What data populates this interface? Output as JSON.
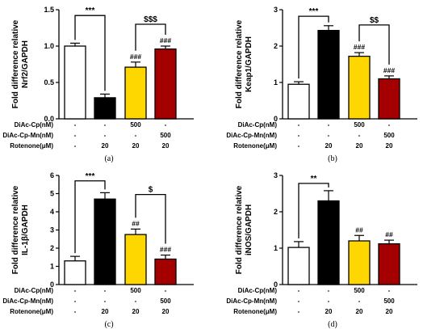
{
  "panel_layout": [
    {
      "ox": 0,
      "oy": 0
    },
    {
      "ox": 277,
      "oy": 0
    },
    {
      "ox": 0,
      "oy": 205
    },
    {
      "ox": 277,
      "oy": 205
    }
  ],
  "condition_labels": [
    "DiAc-Cp(nM)",
    "DiAc-Cp-Mn(nM)",
    "Rotenone(μM)"
  ],
  "condition_values": [
    [
      "-",
      "-",
      "500",
      "-"
    ],
    [
      "-",
      "-",
      "-",
      "500"
    ],
    [
      "-",
      "20",
      "20",
      "20"
    ]
  ],
  "bar_colors": [
    "#ffffff",
    "#000000",
    "#ffd700",
    "#a50000"
  ],
  "chart_data": [
    {
      "type": "bar",
      "panel_label": "(a)",
      "ylabel": [
        "Fold difference relative",
        "Nrf2/GAPDH"
      ],
      "ylim": [
        0,
        1.5
      ],
      "yticks": [
        "0.0",
        "0.5",
        "1.0",
        "1.5"
      ],
      "values": [
        1.0,
        0.29,
        0.71,
        0.96
      ],
      "errors": [
        0.04,
        0.05,
        0.07,
        0.04
      ],
      "bar_marks": [
        "",
        "",
        "###",
        "###"
      ],
      "brackets": [
        {
          "from": 0,
          "to": 1,
          "label": "***",
          "level": 1.42
        },
        {
          "from": 2,
          "to": 3,
          "label": "$$$",
          "level": 1.3
        }
      ],
      "grid": false
    },
    {
      "type": "bar",
      "panel_label": "(b)",
      "ylabel": [
        "Fold difference relative",
        "Keap1/GAPDH"
      ],
      "ylim": [
        0,
        3
      ],
      "yticks": [
        "0",
        "1",
        "2",
        "3"
      ],
      "values": [
        0.95,
        2.43,
        1.72,
        1.1
      ],
      "errors": [
        0.07,
        0.13,
        0.1,
        0.08
      ],
      "bar_marks": [
        "",
        "",
        "###",
        "###"
      ],
      "brackets": [
        {
          "from": 0,
          "to": 1,
          "label": "***",
          "level": 2.82
        },
        {
          "from": 2,
          "to": 3,
          "label": "$$",
          "level": 2.58
        }
      ],
      "grid": false
    },
    {
      "type": "bar",
      "panel_label": "(c)",
      "ylabel": [
        "Fold difference relative",
        "IL-1β/GAPDH"
      ],
      "ylim": [
        0,
        6
      ],
      "yticks": [
        "0",
        "1",
        "2",
        "3",
        "4",
        "5",
        "6"
      ],
      "values": [
        1.3,
        4.7,
        2.75,
        1.4
      ],
      "errors": [
        0.25,
        0.35,
        0.3,
        0.22
      ],
      "bar_marks": [
        "",
        "",
        "##",
        "###"
      ],
      "brackets": [
        {
          "from": 0,
          "to": 1,
          "label": "***",
          "level": 5.7
        },
        {
          "from": 2,
          "to": 3,
          "label": "$",
          "level": 4.95
        }
      ],
      "grid": false
    },
    {
      "type": "bar",
      "panel_label": "(d)",
      "ylabel": [
        "Fold difference relative",
        "iNOS/GAPDH"
      ],
      "ylim": [
        0,
        3
      ],
      "yticks": [
        "0",
        "1",
        "2",
        "3"
      ],
      "values": [
        1.02,
        2.3,
        1.2,
        1.12
      ],
      "errors": [
        0.16,
        0.28,
        0.15,
        0.1
      ],
      "bar_marks": [
        "",
        "",
        "##",
        "##"
      ],
      "brackets": [
        {
          "from": 0,
          "to": 1,
          "label": "**",
          "level": 2.78
        }
      ],
      "grid": false
    }
  ]
}
